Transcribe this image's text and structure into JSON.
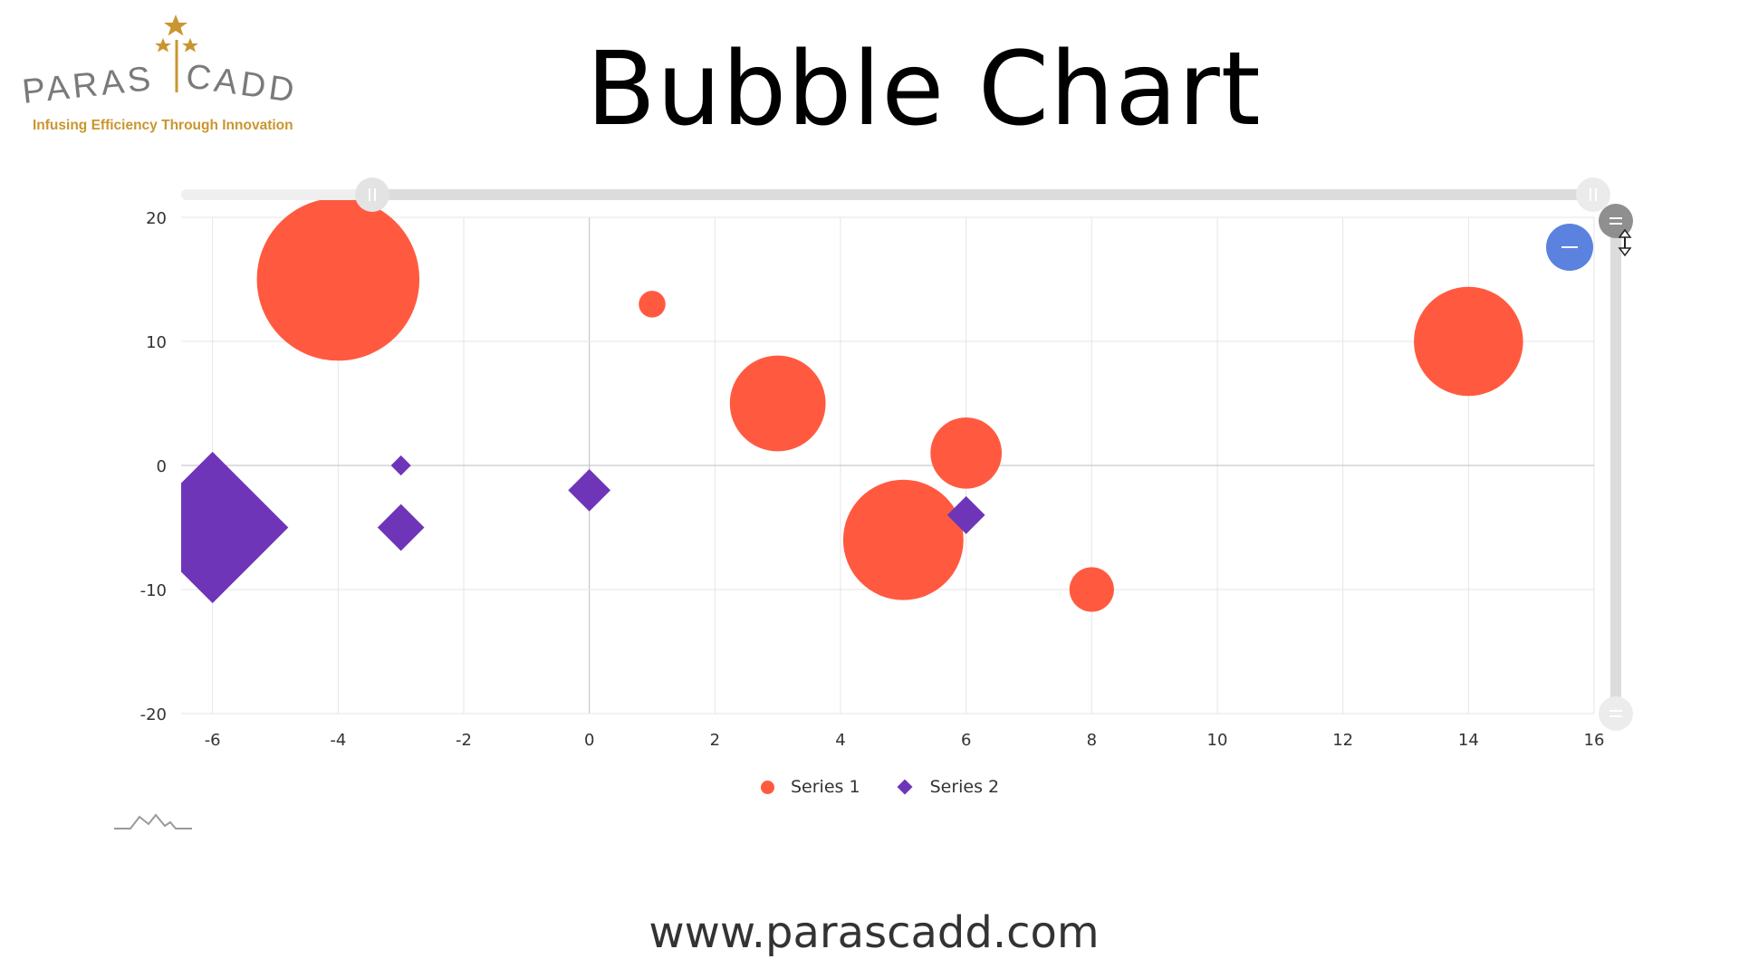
{
  "logo": {
    "wordmark_left": "PARAS",
    "wordmark_right": "CADD",
    "tagline": "Infusing Efficiency Through Innovation",
    "icon": "three-stars-icon",
    "color": "#c9962f"
  },
  "title": "Bubble Chart",
  "footer": {
    "url": "www.parascadd.com"
  },
  "colors": {
    "series1": "#ff5a40",
    "series2": "#6f35b8",
    "zoom_button": "#5b82de",
    "scrollbar": "#dcdcdc",
    "grid": "#e6e6e6",
    "zero_line": "#bdbdbd"
  },
  "zoom_button": {
    "icon": "minus-icon"
  },
  "chart_data": {
    "type": "scatter",
    "subtype": "bubble",
    "title": "",
    "xlabel": "",
    "ylabel": "",
    "xlim": [
      -6.5,
      16
    ],
    "ylim": [
      -20,
      20
    ],
    "x_ticks": [
      "-6",
      "-4",
      "-2",
      "0",
      "2",
      "4",
      "6",
      "8",
      "10",
      "12",
      "14",
      "16"
    ],
    "y_ticks": [
      "20",
      "10",
      "0",
      "-10",
      "-20"
    ],
    "grid": true,
    "legend": "bottom-center",
    "series": [
      {
        "name": "Series 1",
        "marker": "circle",
        "color": "#ff5a40",
        "points": [
          {
            "x": -4,
            "y": 15,
            "size": 73
          },
          {
            "x": 1,
            "y": 13,
            "size": 12
          },
          {
            "x": 3,
            "y": 5,
            "size": 43
          },
          {
            "x": 6,
            "y": 1,
            "size": 32
          },
          {
            "x": 5,
            "y": -6,
            "size": 54
          },
          {
            "x": 8,
            "y": -10,
            "size": 20
          },
          {
            "x": 14,
            "y": 10,
            "size": 49
          }
        ]
      },
      {
        "name": "Series 2",
        "marker": "diamond",
        "color": "#6f35b8",
        "points": [
          {
            "x": -6,
            "y": -5,
            "size": 68
          },
          {
            "x": -3,
            "y": 0,
            "size": 9
          },
          {
            "x": -3,
            "y": -5,
            "size": 21
          },
          {
            "x": 0,
            "y": -2,
            "size": 19
          },
          {
            "x": 6,
            "y": -4,
            "size": 17
          }
        ]
      }
    ]
  }
}
